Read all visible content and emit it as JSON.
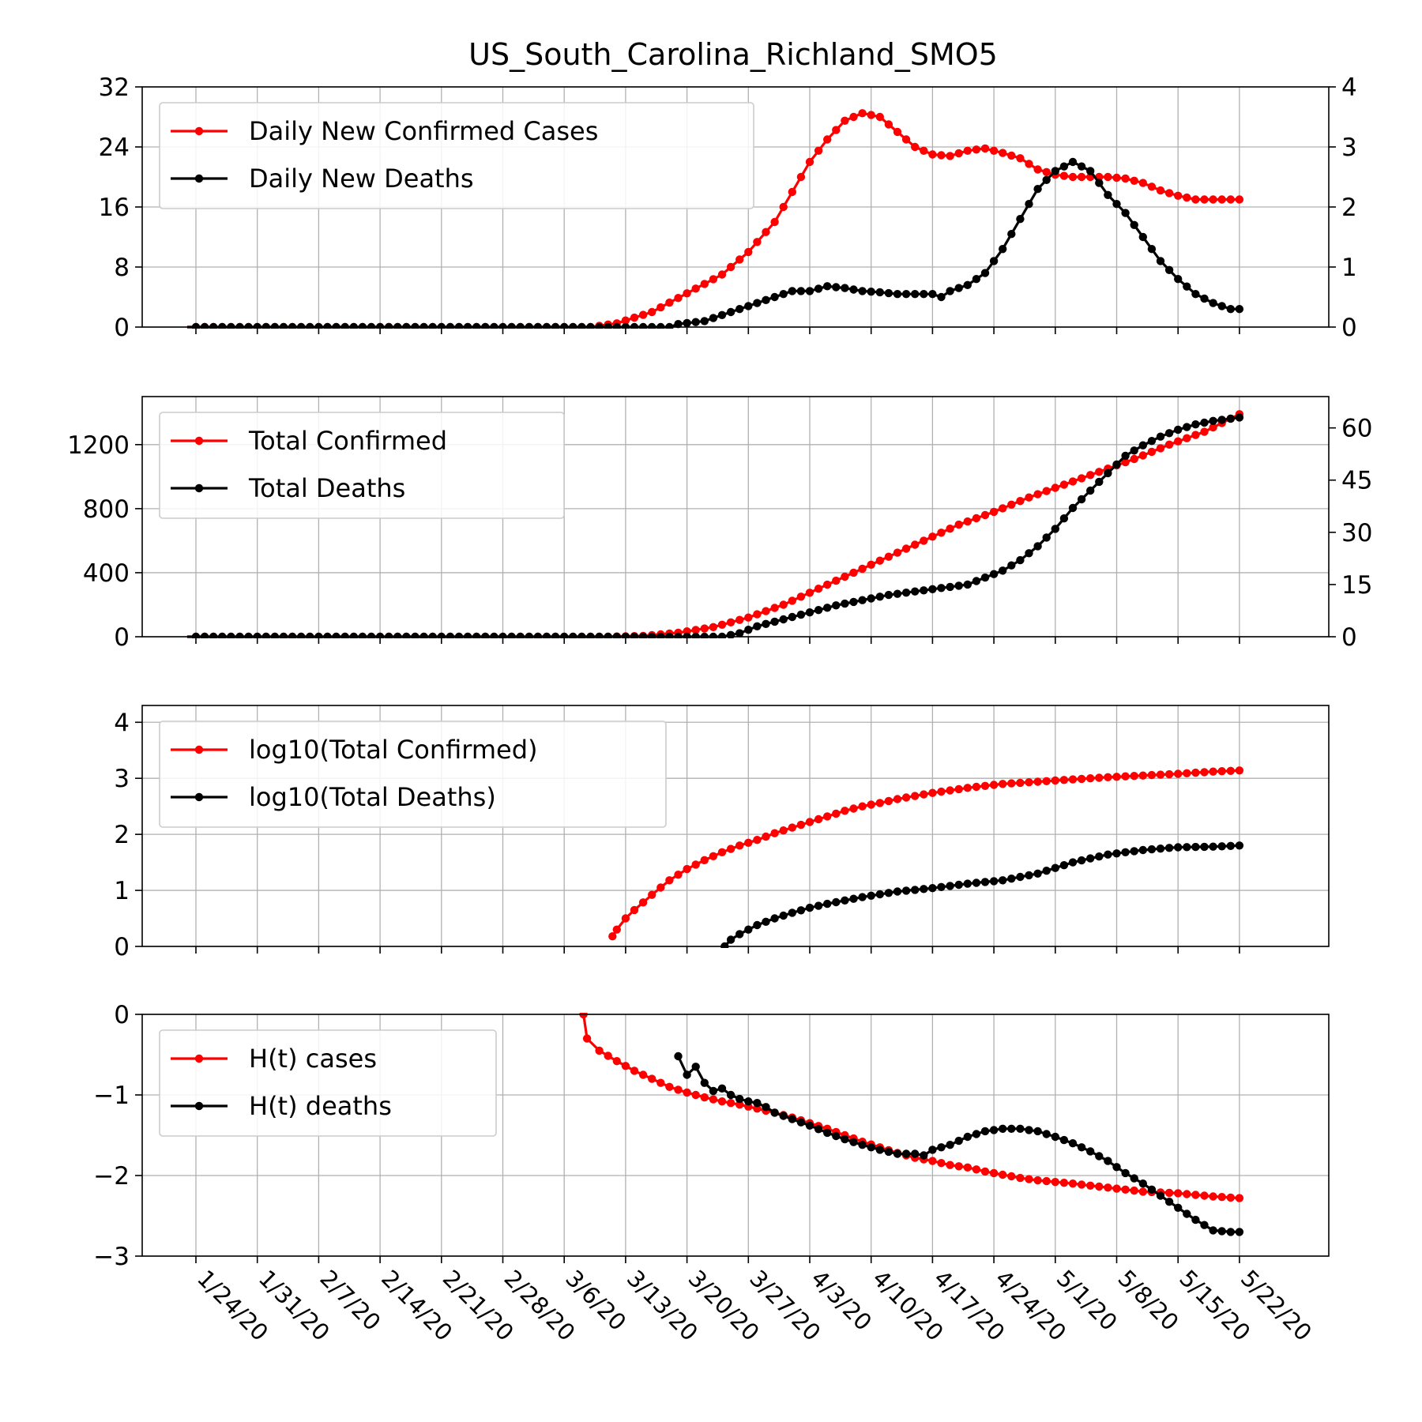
{
  "title": "US_South_Carolina_Richland_SMO5",
  "x_tick_labels": [
    "1/24/20",
    "1/31/20",
    "2/7/20",
    "2/14/20",
    "2/21/20",
    "2/28/20",
    "3/6/20",
    "3/13/20",
    "3/20/20",
    "3/27/20",
    "4/3/20",
    "4/10/20",
    "4/17/20",
    "4/24/20",
    "5/1/20",
    "5/8/20",
    "5/15/20",
    "5/22/20"
  ],
  "colors": {
    "cases": "#ff0000",
    "deaths": "#000000"
  },
  "chart_data": [
    {
      "type": "line",
      "ylim": [
        0,
        32
      ],
      "y_ticks": [
        "0",
        "8",
        "16",
        "24",
        "32"
      ],
      "y2lim": [
        0,
        4
      ],
      "y2_ticks": [
        "0",
        "1",
        "2",
        "3",
        "4"
      ],
      "legend_position": "top-left",
      "grid": true,
      "series": [
        {
          "name": "Daily New Confirmed Cases",
          "axis": "left",
          "color": "#ff0000",
          "points": [
            [
              -1,
              0
            ],
            [
              0,
              0
            ],
            [
              45,
              0
            ],
            [
              48,
              0.5
            ],
            [
              52,
              2
            ],
            [
              56,
              4.5
            ],
            [
              60,
              7
            ],
            [
              63,
              10
            ],
            [
              66,
              14
            ],
            [
              68,
              18
            ],
            [
              70,
              22
            ],
            [
              72,
              25
            ],
            [
              74,
              27.5
            ],
            [
              76,
              28.5
            ],
            [
              78,
              28
            ],
            [
              80,
              26
            ],
            [
              82,
              24
            ],
            [
              84,
              23
            ],
            [
              86,
              22.8
            ],
            [
              88,
              23.5
            ],
            [
              90,
              23.8
            ],
            [
              92,
              23.2
            ],
            [
              94,
              22.5
            ],
            [
              96,
              21
            ],
            [
              98,
              20.3
            ],
            [
              100,
              20
            ],
            [
              104,
              20
            ],
            [
              106,
              19.8
            ],
            [
              108,
              19.2
            ],
            [
              110,
              18.2
            ],
            [
              112,
              17.5
            ],
            [
              114,
              17
            ],
            [
              117,
              17
            ],
            [
              119,
              17
            ]
          ]
        },
        {
          "name": "Daily New Deaths",
          "axis": "right",
          "color": "#000000",
          "points": [
            [
              -1,
              0
            ],
            [
              0,
              0
            ],
            [
              54,
              0
            ],
            [
              55,
              0.05
            ],
            [
              58,
              0.1
            ],
            [
              60,
              0.2
            ],
            [
              62,
              0.3
            ],
            [
              64,
              0.4
            ],
            [
              66,
              0.5
            ],
            [
              68,
              0.6
            ],
            [
              70,
              0.6
            ],
            [
              72,
              0.68
            ],
            [
              74,
              0.65
            ],
            [
              76,
              0.6
            ],
            [
              78,
              0.58
            ],
            [
              80,
              0.55
            ],
            [
              82,
              0.55
            ],
            [
              84,
              0.55
            ],
            [
              85,
              0.5
            ],
            [
              86,
              0.6
            ],
            [
              88,
              0.7
            ],
            [
              90,
              0.9
            ],
            [
              92,
              1.3
            ],
            [
              94,
              1.8
            ],
            [
              96,
              2.3
            ],
            [
              98,
              2.6
            ],
            [
              100,
              2.75
            ],
            [
              102,
              2.6
            ],
            [
              104,
              2.2
            ],
            [
              106,
              1.9
            ],
            [
              108,
              1.5
            ],
            [
              110,
              1.1
            ],
            [
              112,
              0.8
            ],
            [
              114,
              0.55
            ],
            [
              116,
              0.4
            ],
            [
              118,
              0.3
            ],
            [
              119,
              0.3
            ]
          ]
        }
      ]
    },
    {
      "type": "line",
      "ylim": [
        0,
        1500
      ],
      "y_ticks": [
        "0",
        "400",
        "800",
        "1200"
      ],
      "y2lim": [
        0,
        69
      ],
      "y2_ticks": [
        "0",
        "15",
        "30",
        "45",
        "60"
      ],
      "legend_position": "top-left",
      "grid": true,
      "series": [
        {
          "name": "Total Confirmed",
          "axis": "left",
          "color": "#ff0000",
          "points": [
            [
              -1,
              0
            ],
            [
              0,
              0
            ],
            [
              47,
              0
            ],
            [
              51,
              5
            ],
            [
              55,
              25
            ],
            [
              59,
              60
            ],
            [
              63,
              120
            ],
            [
              67,
              200
            ],
            [
              71,
              300
            ],
            [
              75,
              400
            ],
            [
              79,
              500
            ],
            [
              83,
              600
            ],
            [
              87,
              700
            ],
            [
              91,
              780
            ],
            [
              95,
              870
            ],
            [
              99,
              950
            ],
            [
              103,
              1030
            ],
            [
              107,
              1110
            ],
            [
              111,
              1200
            ],
            [
              115,
              1280
            ],
            [
              119,
              1390
            ]
          ]
        },
        {
          "name": "Total Deaths",
          "axis": "right",
          "color": "#000000",
          "points": [
            [
              -1,
              0
            ],
            [
              0,
              0
            ],
            [
              60,
              0
            ],
            [
              62,
              1
            ],
            [
              64,
              3
            ],
            [
              67,
              5
            ],
            [
              70,
              7
            ],
            [
              73,
              9
            ],
            [
              76,
              10.5
            ],
            [
              79,
              12
            ],
            [
              82,
              13
            ],
            [
              85,
              14
            ],
            [
              88,
              15
            ],
            [
              90,
              17
            ],
            [
              92,
              19
            ],
            [
              94,
              22
            ],
            [
              96,
              26
            ],
            [
              98,
              31
            ],
            [
              100,
              37
            ],
            [
              102,
              42
            ],
            [
              104,
              47
            ],
            [
              106,
              52
            ],
            [
              108,
              55
            ],
            [
              110,
              57.5
            ],
            [
              112,
              59.5
            ],
            [
              114,
              61
            ],
            [
              116,
              62
            ],
            [
              119,
              63
            ]
          ]
        }
      ]
    },
    {
      "type": "line",
      "ylim": [
        0,
        4.3
      ],
      "y_ticks": [
        "0",
        "1",
        "2",
        "3",
        "4"
      ],
      "legend_position": "top-left",
      "grid": true,
      "series": [
        {
          "name": "log10(Total Confirmed)",
          "axis": "left",
          "color": "#ff0000",
          "points": [
            [
              47.5,
              0.18
            ],
            [
              48,
              0.3
            ],
            [
              49,
              0.5
            ],
            [
              50,
              0.65
            ],
            [
              52,
              0.92
            ],
            [
              54,
              1.18
            ],
            [
              56,
              1.38
            ],
            [
              58,
              1.54
            ],
            [
              60,
              1.68
            ],
            [
              62,
              1.8
            ],
            [
              64,
              1.9
            ],
            [
              66,
              2.02
            ],
            [
              68,
              2.12
            ],
            [
              70,
              2.22
            ],
            [
              72,
              2.32
            ],
            [
              74,
              2.42
            ],
            [
              76,
              2.5
            ],
            [
              78,
              2.56
            ],
            [
              80,
              2.63
            ],
            [
              84,
              2.74
            ],
            [
              88,
              2.83
            ],
            [
              92,
              2.9
            ],
            [
              96,
              2.94
            ],
            [
              100,
              2.98
            ],
            [
              104,
              3.02
            ],
            [
              108,
              3.05
            ],
            [
              112,
              3.08
            ],
            [
              116,
              3.12
            ],
            [
              119,
              3.14
            ]
          ]
        },
        {
          "name": "log10(Total Deaths)",
          "axis": "left",
          "color": "#000000",
          "points": [
            [
              60.3,
              0
            ],
            [
              61,
              0.12
            ],
            [
              62,
              0.22
            ],
            [
              63,
              0.3
            ],
            [
              64,
              0.38
            ],
            [
              66,
              0.5
            ],
            [
              68,
              0.6
            ],
            [
              70,
              0.69
            ],
            [
              72,
              0.76
            ],
            [
              74,
              0.82
            ],
            [
              76,
              0.88
            ],
            [
              78,
              0.93
            ],
            [
              80,
              0.98
            ],
            [
              84,
              1.04
            ],
            [
              88,
              1.12
            ],
            [
              92,
              1.18
            ],
            [
              96,
              1.3
            ],
            [
              100,
              1.5
            ],
            [
              104,
              1.64
            ],
            [
              108,
              1.72
            ],
            [
              112,
              1.77
            ],
            [
              116,
              1.78
            ],
            [
              119,
              1.8
            ]
          ]
        }
      ]
    },
    {
      "type": "line",
      "ylim": [
        -3,
        0
      ],
      "y_ticks": [
        "−3",
        "−2",
        "−1",
        "0"
      ],
      "legend_position": "top-left",
      "grid": true,
      "series": [
        {
          "name": "H(t) cases",
          "axis": "left",
          "color": "#ff0000",
          "points": [
            [
              44.2,
              0
            ],
            [
              44.6,
              -0.3
            ],
            [
              46,
              -0.45
            ],
            [
              48,
              -0.58
            ],
            [
              50,
              -0.7
            ],
            [
              52,
              -0.8
            ],
            [
              54,
              -0.9
            ],
            [
              56,
              -0.97
            ],
            [
              58,
              -1.03
            ],
            [
              60,
              -1.08
            ],
            [
              62,
              -1.12
            ],
            [
              64,
              -1.17
            ],
            [
              66,
              -1.22
            ],
            [
              68,
              -1.28
            ],
            [
              70,
              -1.35
            ],
            [
              72,
              -1.42
            ],
            [
              74,
              -1.5
            ],
            [
              76,
              -1.58
            ],
            [
              78,
              -1.65
            ],
            [
              80,
              -1.72
            ],
            [
              82,
              -1.78
            ],
            [
              84,
              -1.82
            ],
            [
              86,
              -1.87
            ],
            [
              88,
              -1.9
            ],
            [
              90,
              -1.95
            ],
            [
              92,
              -1.99
            ],
            [
              94,
              -2.03
            ],
            [
              96,
              -2.06
            ],
            [
              98,
              -2.08
            ],
            [
              100,
              -2.1
            ],
            [
              104,
              -2.15
            ],
            [
              108,
              -2.2
            ],
            [
              112,
              -2.22
            ],
            [
              116,
              -2.26
            ],
            [
              119,
              -2.28
            ]
          ]
        },
        {
          "name": "H(t) deaths",
          "axis": "left",
          "color": "#000000",
          "points": [
            [
              55,
              -0.52
            ],
            [
              56,
              -0.75
            ],
            [
              57,
              -0.65
            ],
            [
              58,
              -0.85
            ],
            [
              59,
              -0.95
            ],
            [
              60,
              -0.92
            ],
            [
              61,
              -1.0
            ],
            [
              62,
              -1.05
            ],
            [
              63,
              -1.08
            ],
            [
              64,
              -1.1
            ],
            [
              65,
              -1.15
            ],
            [
              66,
              -1.22
            ],
            [
              68,
              -1.3
            ],
            [
              70,
              -1.38
            ],
            [
              72,
              -1.47
            ],
            [
              74,
              -1.55
            ],
            [
              76,
              -1.62
            ],
            [
              78,
              -1.68
            ],
            [
              80,
              -1.73
            ],
            [
              82,
              -1.73
            ],
            [
              83,
              -1.75
            ],
            [
              84,
              -1.68
            ],
            [
              86,
              -1.62
            ],
            [
              88,
              -1.52
            ],
            [
              90,
              -1.45
            ],
            [
              92,
              -1.42
            ],
            [
              94,
              -1.42
            ],
            [
              96,
              -1.45
            ],
            [
              98,
              -1.52
            ],
            [
              100,
              -1.6
            ],
            [
              102,
              -1.7
            ],
            [
              104,
              -1.82
            ],
            [
              106,
              -1.97
            ],
            [
              108,
              -2.1
            ],
            [
              110,
              -2.25
            ],
            [
              112,
              -2.4
            ],
            [
              114,
              -2.55
            ],
            [
              116,
              -2.68
            ],
            [
              118,
              -2.7
            ],
            [
              119,
              -2.7
            ]
          ]
        }
      ]
    }
  ]
}
